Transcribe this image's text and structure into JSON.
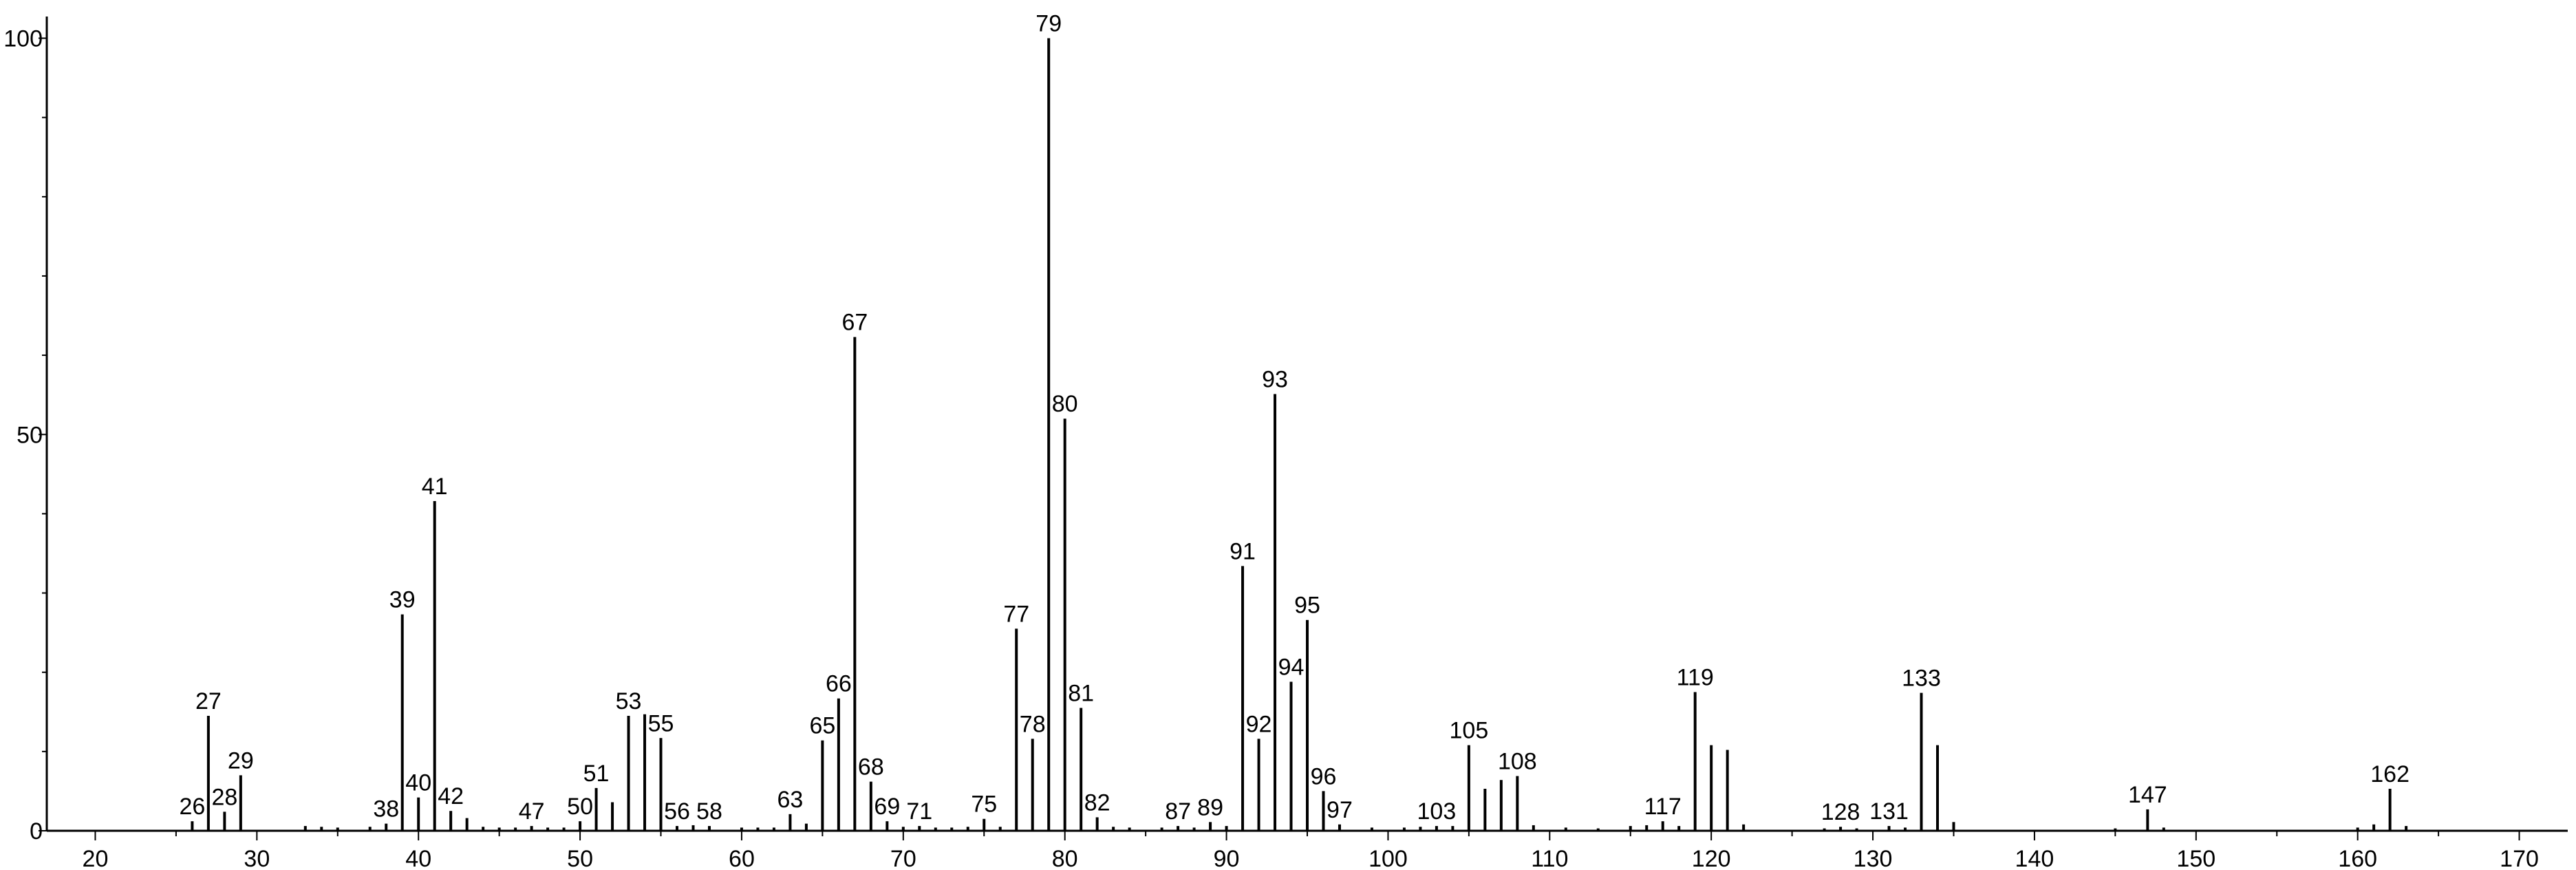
{
  "chart_data": {
    "type": "bar",
    "title": "",
    "xlabel": "",
    "ylabel": "",
    "xlim": [
      17,
      173
    ],
    "ylim": [
      0,
      101
    ],
    "x_ticks": [
      "20",
      "30",
      "40",
      "50",
      "60",
      "70",
      "80",
      "90",
      "100",
      "110",
      "120",
      "130",
      "140",
      "150",
      "160",
      "170"
    ],
    "y_ticks": [
      "0",
      "50",
      "100"
    ],
    "peaks": [
      {
        "x": 26,
        "y": 1.2,
        "label": "26"
      },
      {
        "x": 27,
        "y": 14.5,
        "label": "27"
      },
      {
        "x": 28,
        "y": 2.4,
        "label": "28"
      },
      {
        "x": 29,
        "y": 7.0,
        "label": "29"
      },
      {
        "x": 33,
        "y": 0.6
      },
      {
        "x": 34,
        "y": 0.5
      },
      {
        "x": 35,
        "y": 0.4
      },
      {
        "x": 37,
        "y": 0.5
      },
      {
        "x": 38,
        "y": 0.9,
        "label": "38"
      },
      {
        "x": 39,
        "y": 27.3,
        "label": "39"
      },
      {
        "x": 40,
        "y": 4.2,
        "label": "40"
      },
      {
        "x": 41,
        "y": 41.6,
        "label": "41"
      },
      {
        "x": 42,
        "y": 2.5,
        "label": "42"
      },
      {
        "x": 43,
        "y": 1.6
      },
      {
        "x": 44,
        "y": 0.5
      },
      {
        "x": 45,
        "y": 0.4
      },
      {
        "x": 46,
        "y": 0.4
      },
      {
        "x": 47,
        "y": 0.6,
        "label": "47"
      },
      {
        "x": 48,
        "y": 0.4
      },
      {
        "x": 49,
        "y": 0.4
      },
      {
        "x": 50,
        "y": 1.2,
        "label": "50"
      },
      {
        "x": 51,
        "y": 5.4,
        "label": "51"
      },
      {
        "x": 52,
        "y": 3.6
      },
      {
        "x": 53,
        "y": 14.5,
        "label": "53"
      },
      {
        "x": 54,
        "y": 14.7
      },
      {
        "x": 55,
        "y": 11.7,
        "label": "55"
      },
      {
        "x": 56,
        "y": 0.6,
        "label": "56"
      },
      {
        "x": 57,
        "y": 0.7
      },
      {
        "x": 58,
        "y": 0.6,
        "label": "58"
      },
      {
        "x": 60,
        "y": 0.4
      },
      {
        "x": 61,
        "y": 0.4
      },
      {
        "x": 62,
        "y": 0.4
      },
      {
        "x": 63,
        "y": 2.1,
        "label": "63"
      },
      {
        "x": 64,
        "y": 0.9
      },
      {
        "x": 65,
        "y": 11.4,
        "label": "65"
      },
      {
        "x": 66,
        "y": 16.7,
        "label": "66"
      },
      {
        "x": 67,
        "y": 62.3,
        "label": "67"
      },
      {
        "x": 68,
        "y": 6.2,
        "label": "68"
      },
      {
        "x": 69,
        "y": 1.2,
        "label": "69"
      },
      {
        "x": 70,
        "y": 0.5
      },
      {
        "x": 71,
        "y": 0.6,
        "label": "71"
      },
      {
        "x": 72,
        "y": 0.4
      },
      {
        "x": 73,
        "y": 0.4
      },
      {
        "x": 74,
        "y": 0.5
      },
      {
        "x": 75,
        "y": 1.5,
        "label": "75"
      },
      {
        "x": 76,
        "y": 0.5
      },
      {
        "x": 77,
        "y": 25.5,
        "label": "77"
      },
      {
        "x": 78,
        "y": 11.6,
        "label": "78"
      },
      {
        "x": 79,
        "y": 100,
        "label": "79"
      },
      {
        "x": 80,
        "y": 52.0,
        "label": "80"
      },
      {
        "x": 81,
        "y": 15.5,
        "label": "81"
      },
      {
        "x": 82,
        "y": 1.7,
        "label": "82"
      },
      {
        "x": 83,
        "y": 0.5
      },
      {
        "x": 84,
        "y": 0.4
      },
      {
        "x": 86,
        "y": 0.4
      },
      {
        "x": 87,
        "y": 0.6,
        "label": "87"
      },
      {
        "x": 88,
        "y": 0.4
      },
      {
        "x": 89,
        "y": 1.1,
        "label": "89"
      },
      {
        "x": 90,
        "y": 0.6
      },
      {
        "x": 91,
        "y": 33.4,
        "label": "91"
      },
      {
        "x": 92,
        "y": 11.6,
        "label": "92"
      },
      {
        "x": 93,
        "y": 55.1,
        "label": "93"
      },
      {
        "x": 94,
        "y": 18.8,
        "label": "94"
      },
      {
        "x": 95,
        "y": 26.6,
        "label": "95"
      },
      {
        "x": 96,
        "y": 5.0,
        "label": "96"
      },
      {
        "x": 97,
        "y": 0.8,
        "label": "97"
      },
      {
        "x": 99,
        "y": 0.4
      },
      {
        "x": 101,
        "y": 0.4
      },
      {
        "x": 102,
        "y": 0.5
      },
      {
        "x": 103,
        "y": 0.6,
        "label": "103"
      },
      {
        "x": 104,
        "y": 0.6
      },
      {
        "x": 105,
        "y": 10.8,
        "label": "105"
      },
      {
        "x": 106,
        "y": 5.3
      },
      {
        "x": 107,
        "y": 6.4
      },
      {
        "x": 108,
        "y": 6.9,
        "label": "108"
      },
      {
        "x": 109,
        "y": 0.7
      },
      {
        "x": 111,
        "y": 0.4
      },
      {
        "x": 113,
        "y": 0.3
      },
      {
        "x": 115,
        "y": 0.6
      },
      {
        "x": 116,
        "y": 0.7
      },
      {
        "x": 117,
        "y": 1.2,
        "label": "117"
      },
      {
        "x": 118,
        "y": 0.6
      },
      {
        "x": 119,
        "y": 17.5,
        "label": "119"
      },
      {
        "x": 120,
        "y": 10.8
      },
      {
        "x": 121,
        "y": 10.2
      },
      {
        "x": 122,
        "y": 0.8
      },
      {
        "x": 127,
        "y": 0.3
      },
      {
        "x": 128,
        "y": 0.5,
        "label": "128"
      },
      {
        "x": 129,
        "y": 0.3
      },
      {
        "x": 131,
        "y": 0.6,
        "label": "131"
      },
      {
        "x": 132,
        "y": 0.4
      },
      {
        "x": 133,
        "y": 17.4,
        "label": "133"
      },
      {
        "x": 134,
        "y": 10.8
      },
      {
        "x": 135,
        "y": 1.1
      },
      {
        "x": 145,
        "y": 0.3
      },
      {
        "x": 147,
        "y": 2.7,
        "label": "147"
      },
      {
        "x": 148,
        "y": 0.4
      },
      {
        "x": 160,
        "y": 0.4
      },
      {
        "x": 161,
        "y": 0.8
      },
      {
        "x": 162,
        "y": 5.3,
        "label": "162"
      },
      {
        "x": 163,
        "y": 0.6
      }
    ],
    "grid": false,
    "legend": "none",
    "colors": {
      "line": "#000000",
      "background": "#ffffff"
    }
  }
}
